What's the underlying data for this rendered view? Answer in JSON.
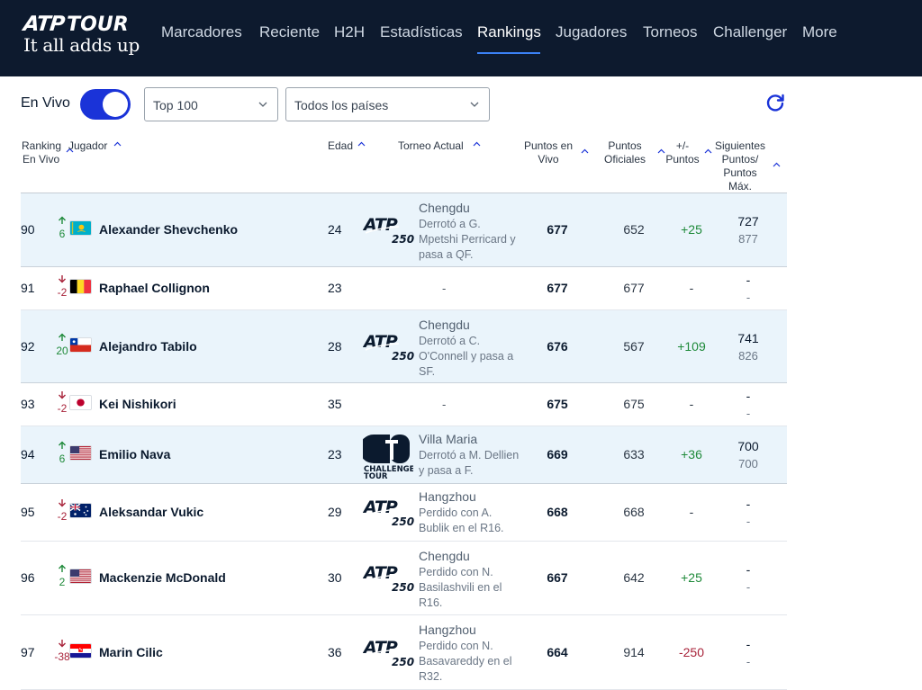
{
  "header": {
    "logo": {
      "brand": "ATP",
      "tour": "TOUR",
      "slogan": "It all adds up"
    },
    "nav": [
      {
        "label": "Marcadores",
        "active": false
      },
      {
        "label": "Reciente",
        "active": false
      },
      {
        "label": "H2H",
        "active": false
      },
      {
        "label": "Estadísticas",
        "active": false
      },
      {
        "label": "Rankings",
        "active": true
      },
      {
        "label": "Jugadores",
        "active": false
      },
      {
        "label": "Torneos",
        "active": false
      },
      {
        "label": "Challenger",
        "active": false
      },
      {
        "label": "More",
        "active": false
      }
    ]
  },
  "controls": {
    "live_label": "En Vivo",
    "live_on": true,
    "range_select": "Top 100",
    "country_select": "Todos los países",
    "refresh_icon": "refresh-icon"
  },
  "table": {
    "columns": {
      "rank_line1": "Ranking",
      "rank_line2": "En Vivo",
      "player": "Jugador",
      "age": "Edad",
      "tournament": "Torneo Actual",
      "live_pts_line1": "Puntos en",
      "live_pts_line2": "Vivo",
      "off_pts_line1": "Puntos",
      "off_pts_line2": "Oficiales",
      "delta_line1": "+/-",
      "delta_line2": "Puntos",
      "next_line1": "Siguientes",
      "next_line2": "Puntos/",
      "next_line3": "Puntos",
      "next_line4": "Máx."
    },
    "rows": [
      {
        "rank": "90",
        "move_dir": "up",
        "move": "6",
        "flag": "kaz",
        "player": "Alexander Shevchenko",
        "age": "24",
        "tournament_logo": "atp250",
        "tournament": "Chengdu",
        "result_lines": [
          "Derrotó a G.",
          "Mpetshi Perricard y",
          "pasa a QF."
        ],
        "live_pts": "677",
        "off_pts": "652",
        "delta": "+25",
        "delta_kind": "pos",
        "next_pts": "727",
        "max_pts": "877"
      },
      {
        "rank": "91",
        "move_dir": "down",
        "move": "-2",
        "flag": "bel",
        "player": "Raphael Collignon",
        "age": "23",
        "tournament_logo": "none",
        "tournament": "-",
        "result_lines": [],
        "live_pts": "677",
        "off_pts": "677",
        "delta": "-",
        "delta_kind": "none",
        "next_pts": "-",
        "max_pts": "-"
      },
      {
        "rank": "92",
        "move_dir": "up",
        "move": "20",
        "flag": "chi",
        "player": "Alejandro Tabilo",
        "age": "28",
        "tournament_logo": "atp250",
        "tournament": "Chengdu",
        "result_lines": [
          "Derrotó a C.",
          "O'Connell y pasa a",
          "SF."
        ],
        "live_pts": "676",
        "off_pts": "567",
        "delta": "+109",
        "delta_kind": "pos",
        "next_pts": "741",
        "max_pts": "826"
      },
      {
        "rank": "93",
        "move_dir": "down",
        "move": "-2",
        "flag": "jpn",
        "player": "Kei Nishikori",
        "age": "35",
        "tournament_logo": "none",
        "tournament": "-",
        "result_lines": [],
        "live_pts": "675",
        "off_pts": "675",
        "delta": "-",
        "delta_kind": "none",
        "next_pts": "-",
        "max_pts": "-"
      },
      {
        "rank": "94",
        "move_dir": "up",
        "move": "6",
        "flag": "usa",
        "player": "Emilio Nava",
        "age": "23",
        "tournament_logo": "challenger",
        "tournament": "Villa Maria",
        "result_lines": [
          "Derrotó a M. Dellien",
          "y pasa a F."
        ],
        "live_pts": "669",
        "off_pts": "633",
        "delta": "+36",
        "delta_kind": "pos",
        "next_pts": "700",
        "max_pts": "700"
      },
      {
        "rank": "95",
        "move_dir": "down",
        "move": "-2",
        "flag": "aus",
        "player": "Aleksandar Vukic",
        "age": "29",
        "tournament_logo": "atp250",
        "tournament": "Hangzhou",
        "result_lines": [
          "Perdido con A.",
          "Bublik en el R16."
        ],
        "live_pts": "668",
        "off_pts": "668",
        "delta": "-",
        "delta_kind": "none",
        "next_pts": "-",
        "max_pts": "-"
      },
      {
        "rank": "96",
        "move_dir": "up",
        "move": "2",
        "flag": "usa",
        "player": "Mackenzie McDonald",
        "age": "30",
        "tournament_logo": "atp250",
        "tournament": "Chengdu",
        "result_lines": [
          "Perdido con N.",
          "Basilashvili en el",
          "R16."
        ],
        "live_pts": "667",
        "off_pts": "642",
        "delta": "+25",
        "delta_kind": "pos",
        "next_pts": "-",
        "max_pts": "-"
      },
      {
        "rank": "97",
        "move_dir": "down",
        "move": "-38",
        "flag": "cro",
        "player": "Marin Cilic",
        "age": "36",
        "tournament_logo": "atp250",
        "tournament": "Hangzhou",
        "result_lines": [
          "Perdido con N.",
          "Basavareddy en el",
          "R32."
        ],
        "live_pts": "664",
        "off_pts": "914",
        "delta": "-250",
        "delta_kind": "neg",
        "next_pts": "-",
        "max_pts": "-"
      }
    ],
    "logo_text": {
      "atp_word": "ATP",
      "atp_level": "250",
      "challenger_line1": "CHALLENGER",
      "challenger_line2": "TOUR"
    }
  },
  "colors": {
    "header_bg": "#0d1a2e",
    "accent_blue": "#1a33d8",
    "up_green": "#1f8a3a",
    "down_red": "#a8233a",
    "row_shade": "#eaf4fb"
  }
}
